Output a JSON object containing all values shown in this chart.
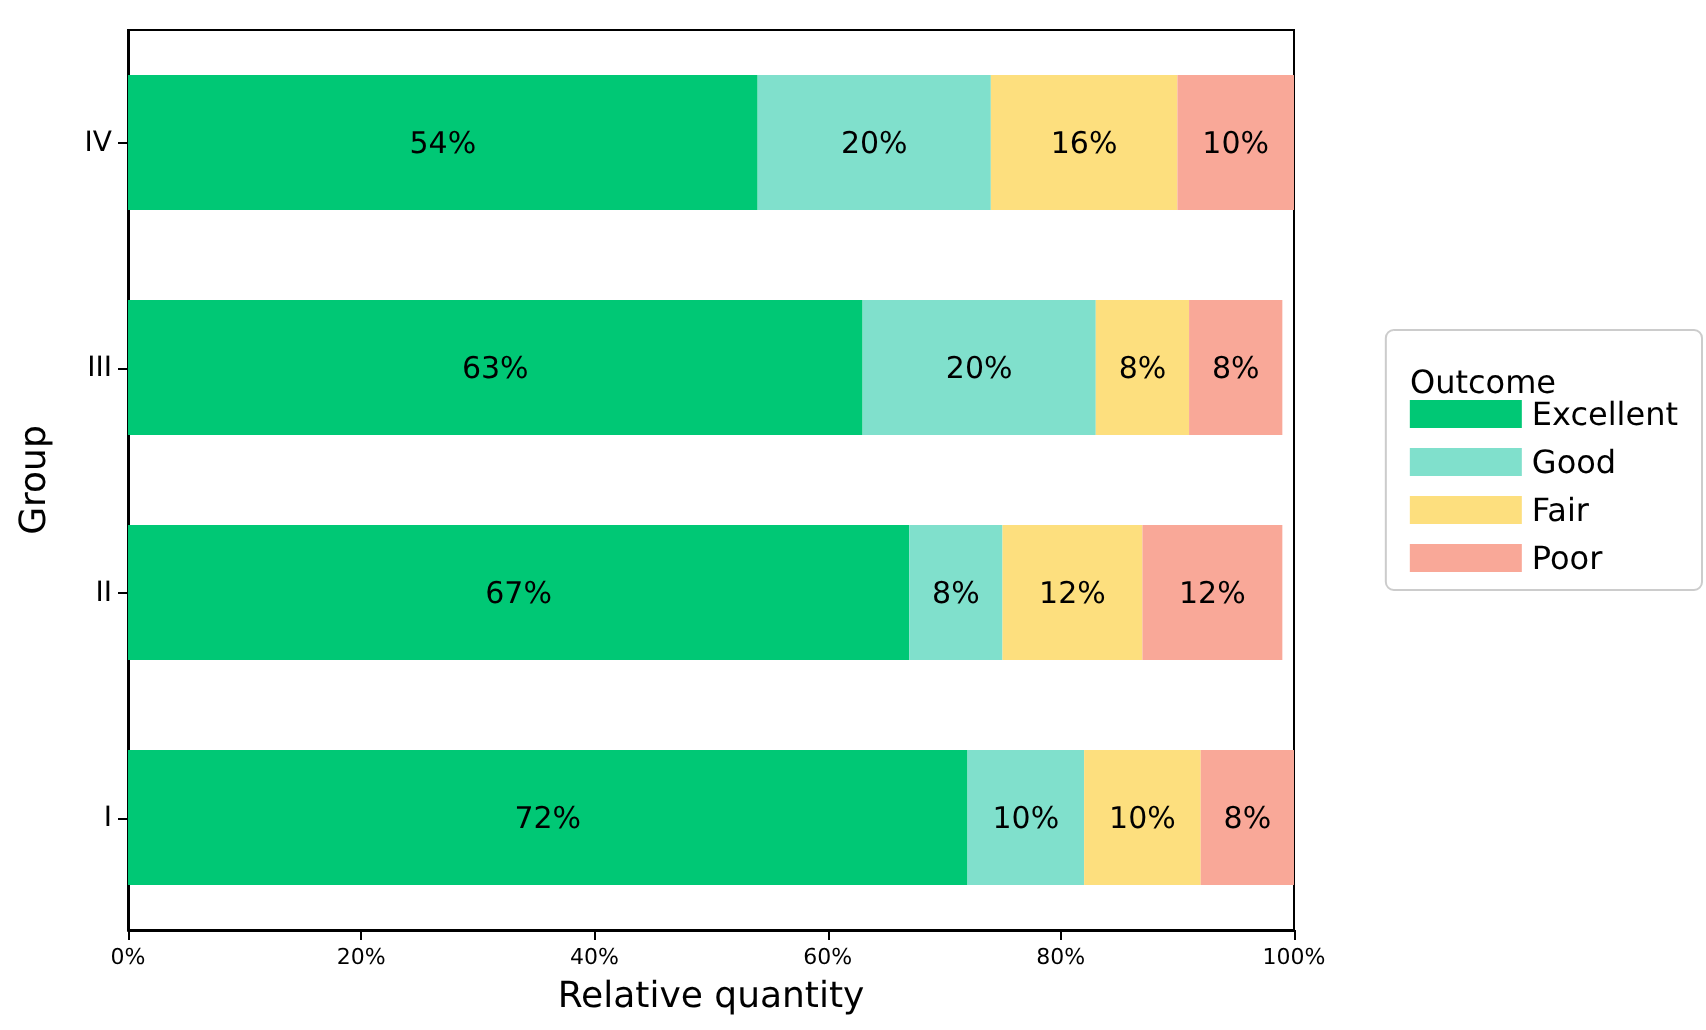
{
  "chart_data": {
    "type": "bar",
    "orientation": "horizontal",
    "stacked": true,
    "categories": [
      "IV",
      "III",
      "II",
      "I"
    ],
    "series": [
      {
        "name": "Excellent",
        "color": "#00c875",
        "values": [
          54,
          63,
          67,
          72
        ],
        "value_labels": [
          "54%",
          "63%",
          "67%",
          "72%"
        ]
      },
      {
        "name": "Good",
        "color": "#80e0cc",
        "values": [
          20,
          20,
          8,
          10
        ],
        "value_labels": [
          "20%",
          "20%",
          "8%",
          "10%"
        ]
      },
      {
        "name": "Fair",
        "color": "#fddf7e",
        "values": [
          16,
          8,
          12,
          10
        ],
        "value_labels": [
          "16%",
          "8%",
          "12%",
          "10%"
        ]
      },
      {
        "name": "Poor",
        "color": "#f9a898",
        "values": [
          10,
          8,
          12,
          8
        ],
        "value_labels": [
          "10%",
          "8%",
          "12%",
          "8%"
        ]
      }
    ],
    "xlim": [
      0,
      100
    ],
    "xticks": [
      {
        "value": 0,
        "label": "0%"
      },
      {
        "value": 20,
        "label": "20%"
      },
      {
        "value": 40,
        "label": "40%"
      },
      {
        "value": 60,
        "label": "60%"
      },
      {
        "value": 80,
        "label": "80%"
      },
      {
        "value": 100,
        "label": "100%"
      }
    ],
    "xlabel": "Relative quantity",
    "ylabel": "Group",
    "legend_title": "Outcome",
    "legend": "right",
    "grid": false
  }
}
